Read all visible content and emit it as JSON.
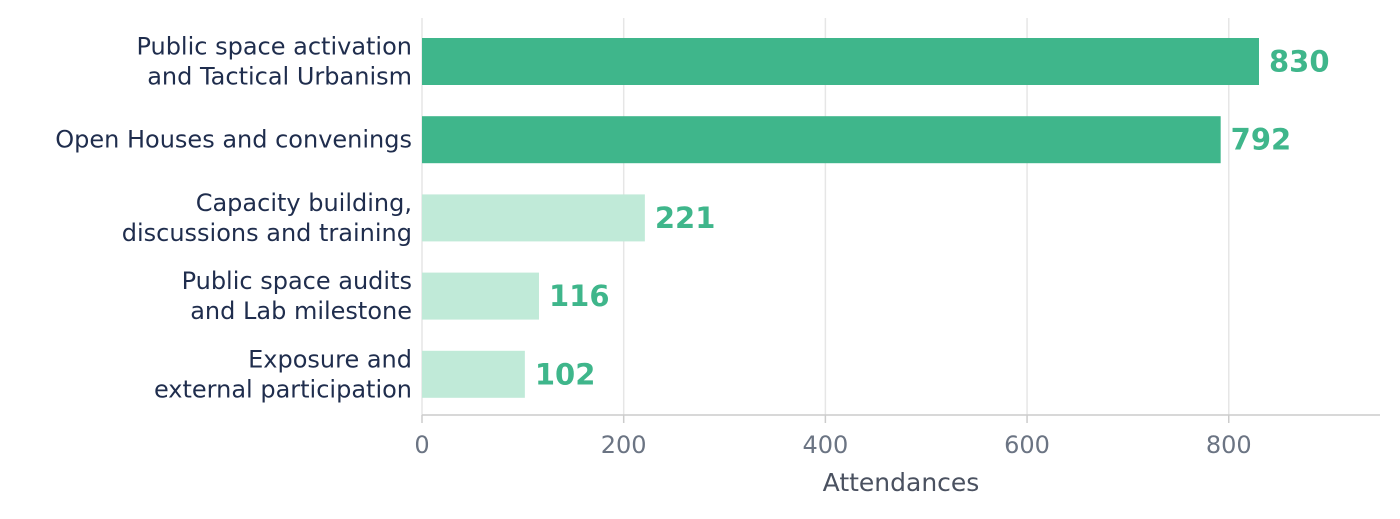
{
  "chart_data": {
    "type": "bar",
    "orientation": "horizontal",
    "categories": [
      [
        "Public space activation",
        "and Tactical Urbanism"
      ],
      [
        "Open Houses and convenings"
      ],
      [
        "Capacity building,",
        "discussions and training"
      ],
      [
        "Public space audits",
        "and Lab milestone"
      ],
      [
        "Exposure and",
        "external participation"
      ]
    ],
    "values": [
      830,
      792,
      221,
      116,
      102
    ],
    "value_labels": [
      "830",
      "792",
      "221",
      "116",
      "102"
    ],
    "bar_colors": [
      "#3fb68b",
      "#3fb68b",
      "#c0ead8",
      "#c0ead8",
      "#c0ead8"
    ],
    "value_label_color": "#3fb68b",
    "xlabel": "Attendances",
    "ylabel": "",
    "xlim": [
      0,
      950
    ],
    "xticks": [
      0,
      200,
      400,
      600,
      800
    ],
    "grid": "vertical",
    "legend": "none"
  }
}
